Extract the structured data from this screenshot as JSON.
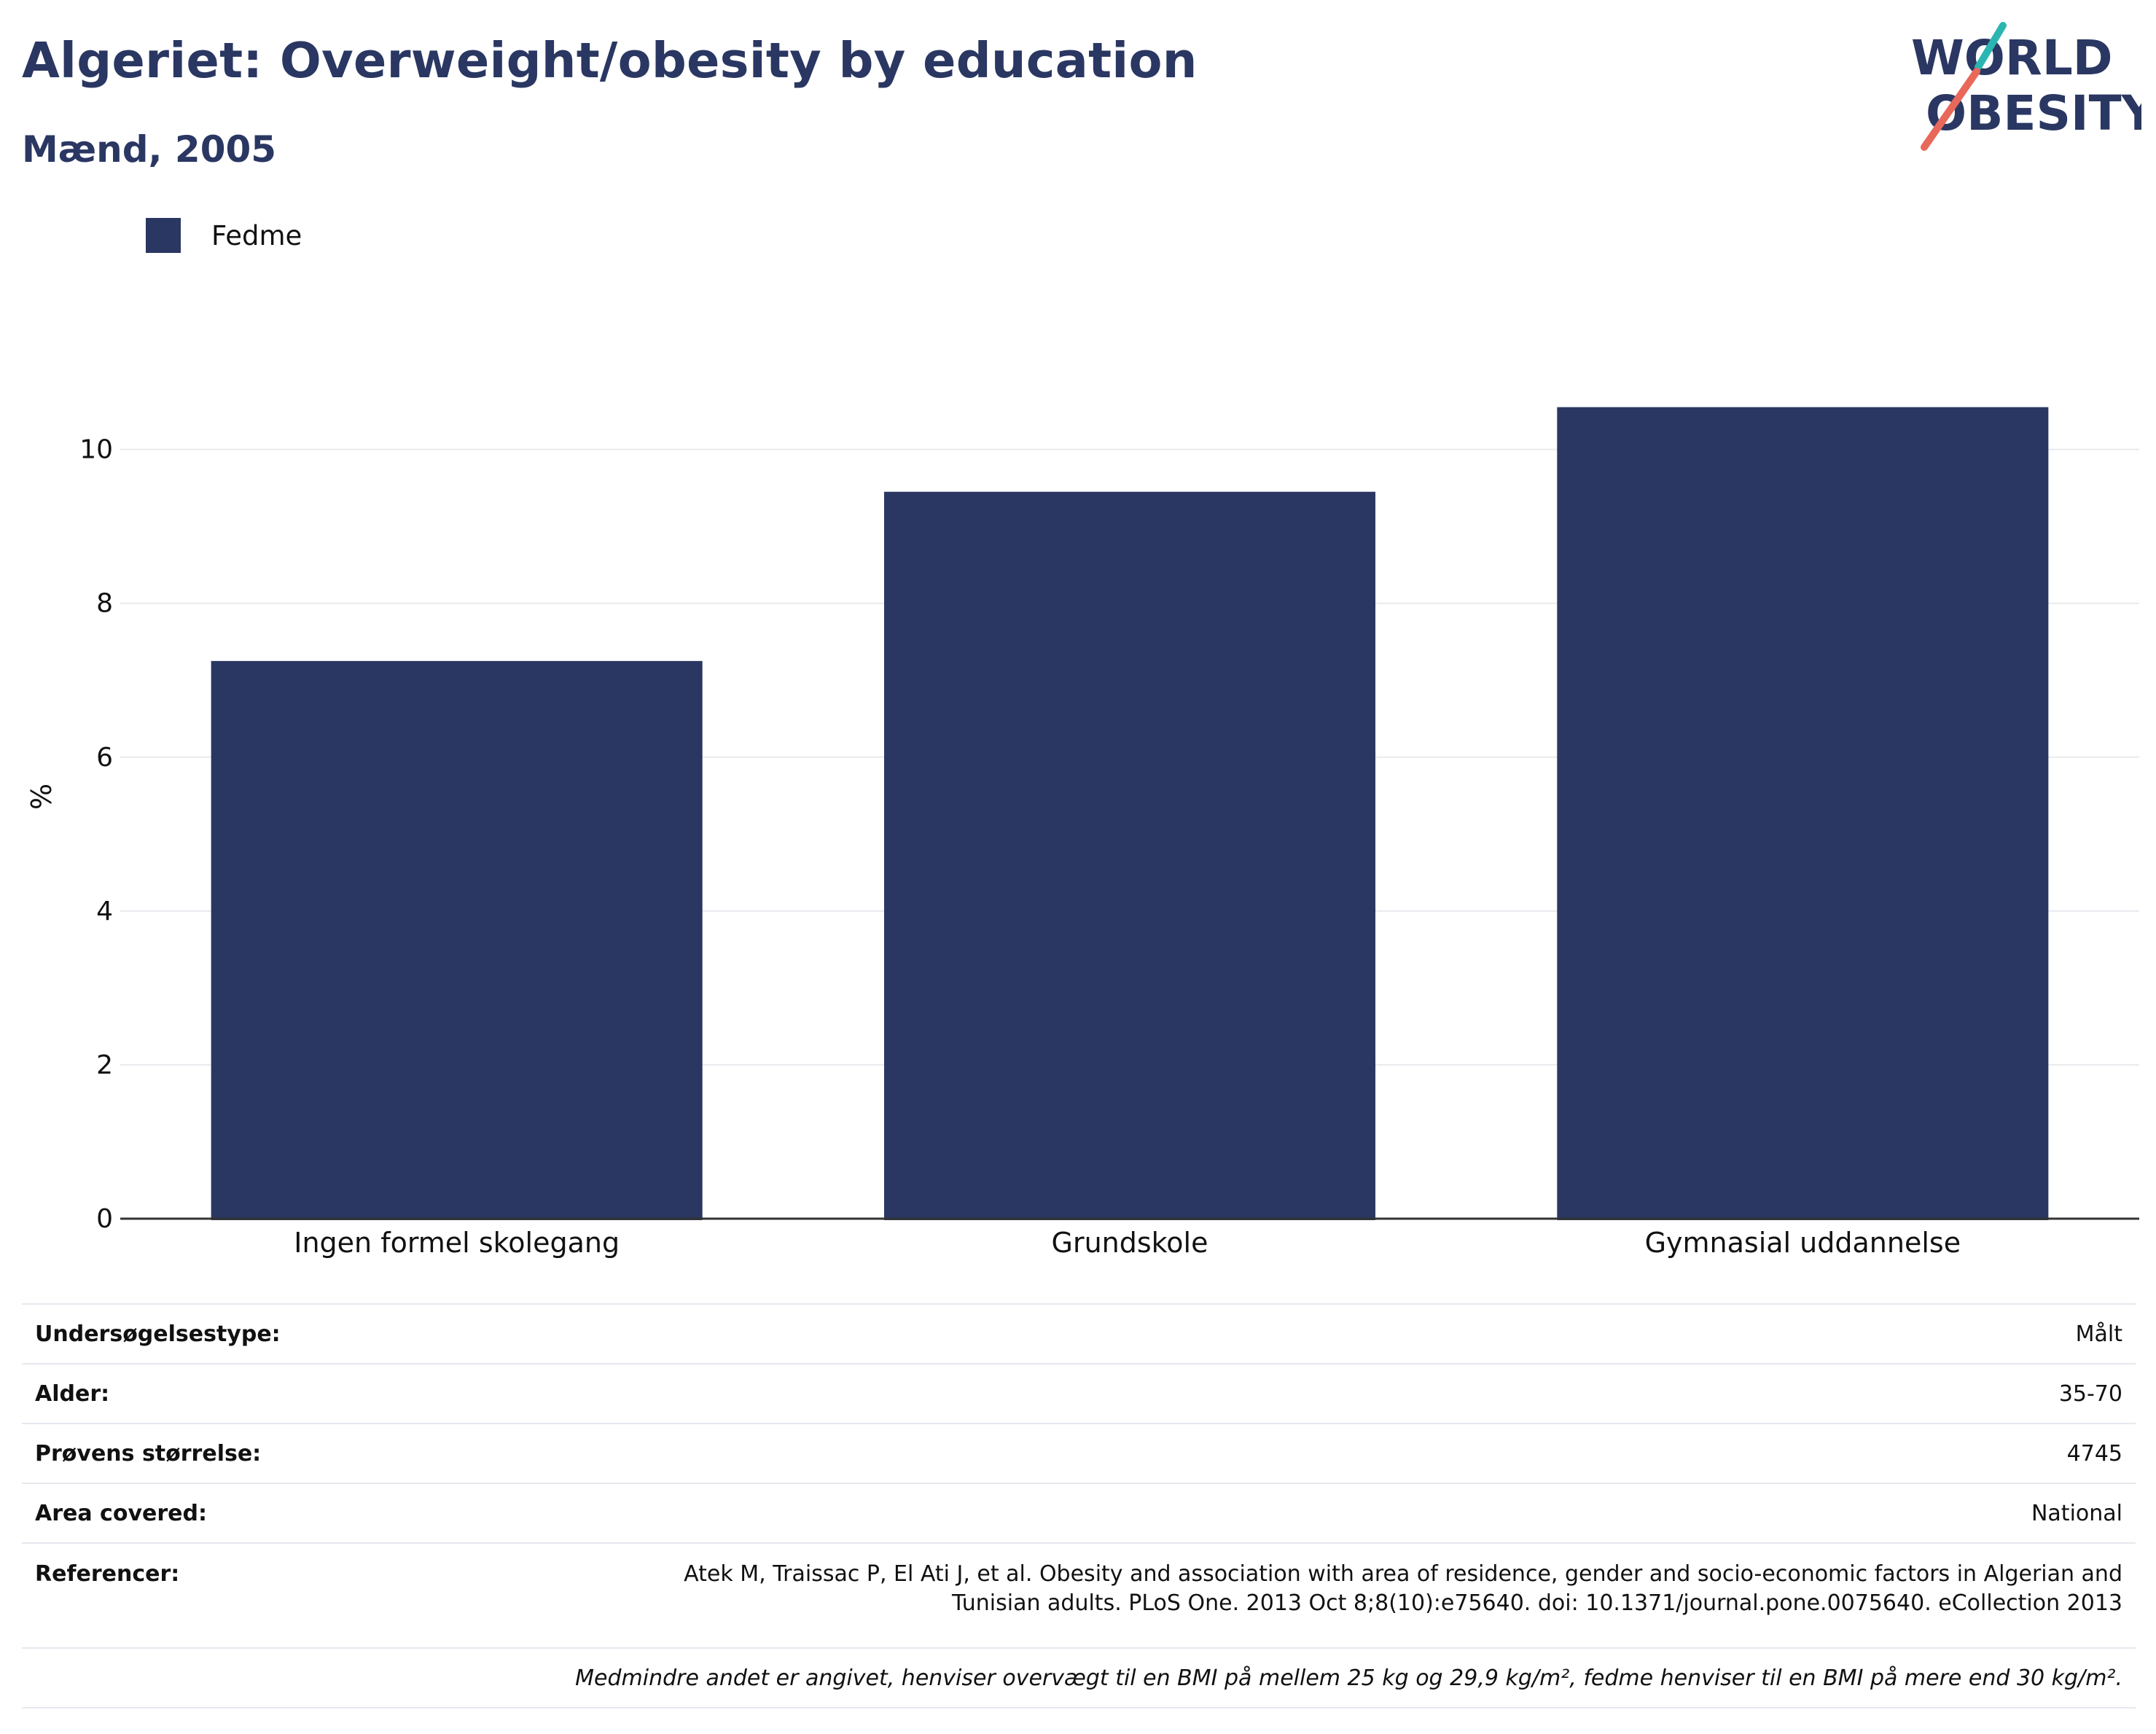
{
  "header": {
    "title": "Algeriet: Overweight/obesity by education",
    "subtitle": "Mænd, 2005"
  },
  "logo": {
    "line1": "WORLD",
    "line2": "OBESITY",
    "colors": {
      "text": "#2a3762",
      "slash_top": "#2bb5b0",
      "slash_bottom": "#e8685a"
    }
  },
  "colors": {
    "bar": "#2a3762",
    "grid": "#e8eaee",
    "axis": "#333333"
  },
  "chart_data": {
    "type": "bar",
    "categories": [
      "Ingen formel skolegang",
      "Grundskole",
      "Gymnasial uddannelse"
    ],
    "series": [
      {
        "name": "Fedme",
        "values": [
          7.25,
          9.45,
          10.55
        ]
      }
    ],
    "title": "Algeriet: Overweight/obesity by education",
    "subtitle": "Mænd, 2005",
    "xlabel": "",
    "ylabel": "%",
    "ylim": [
      0,
      11.2
    ],
    "yticks": [
      0,
      2,
      4,
      6,
      8,
      10
    ],
    "grid": true,
    "legend": "top-left"
  },
  "info": {
    "survey_type": {
      "label": "Undersøgelsestype:",
      "value": "Målt"
    },
    "age": {
      "label": "Alder:",
      "value": "35-70"
    },
    "sample_size": {
      "label": "Prøvens størrelse:",
      "value": "4745"
    },
    "area": {
      "label": "Area covered:",
      "value": "National"
    },
    "references": {
      "label": "Referencer:",
      "value_line1": "Atek M, Traissac P, El Ati J, et al. Obesity and association with area of residence, gender and socio-economic factors in Algerian and",
      "value_line2": "Tunisian adults. PLoS One. 2013 Oct 8;8(10):e75640. doi: 10.1371/journal.pone.0075640. eCollection 2013"
    },
    "note": "Medmindre andet er angivet, henviser overvægt til en BMI på mellem 25 kg og 29,9 kg/m², fedme henviser til en BMI på mere end 30 kg/m²."
  }
}
